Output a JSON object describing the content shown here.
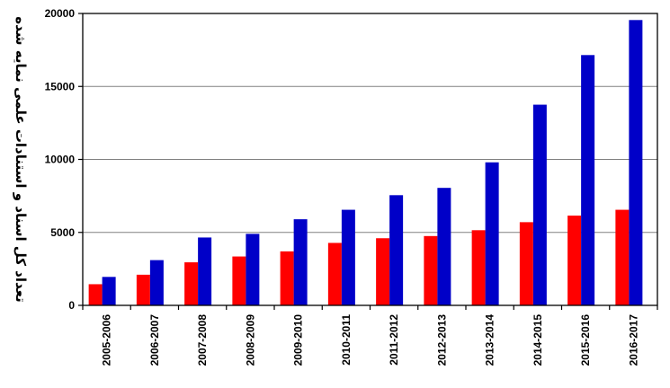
{
  "chart_data": {
    "type": "bar",
    "ylabel": "تعداد کل اسناد و استنادات علمی نمایه شده",
    "xlabel": "",
    "title": "",
    "ylim": [
      0,
      20000
    ],
    "yticks": [
      0,
      5000,
      10000,
      15000,
      20000
    ],
    "grid": "horizontal",
    "legend": "none",
    "categories": [
      "2005-2006",
      "2006-2007",
      "2007-2008",
      "2008-2009",
      "2009-2010",
      "2010-2011",
      "2011-2012",
      "2012-2013",
      "2013-2014",
      "2014-2015",
      "2015-2016",
      "2016-2017"
    ],
    "series": [
      {
        "color": "#ff0000",
        "values": [
          1450,
          2100,
          2950,
          3350,
          3700,
          4280,
          4600,
          4750,
          5150,
          5700,
          6150,
          6550
        ]
      },
      {
        "color": "#0000c8",
        "values": [
          1950,
          3100,
          4650,
          4900,
          5900,
          6550,
          7550,
          8050,
          9800,
          13750,
          17150,
          19550
        ]
      }
    ]
  }
}
